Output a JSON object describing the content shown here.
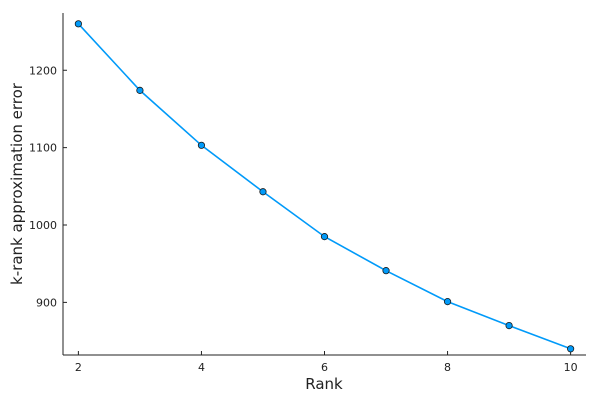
{
  "chart_data": {
    "type": "line",
    "title": "",
    "xlabel": "Rank",
    "ylabel": "k-rank approximation error",
    "xlim": [
      1.75,
      10.25
    ],
    "ylim": [
      832,
      1274
    ],
    "x_ticks": [
      2,
      4,
      6,
      8,
      10
    ],
    "y_ticks": [
      900,
      1000,
      1100,
      1200
    ],
    "grid": false,
    "legend": "none",
    "series": [
      {
        "color": "#009af9",
        "x": [
          2,
          3,
          4,
          5,
          6,
          7,
          8,
          9,
          10
        ],
        "y": [
          1260,
          1174,
          1103,
          1043,
          985,
          941,
          901,
          870,
          840
        ]
      }
    ]
  }
}
